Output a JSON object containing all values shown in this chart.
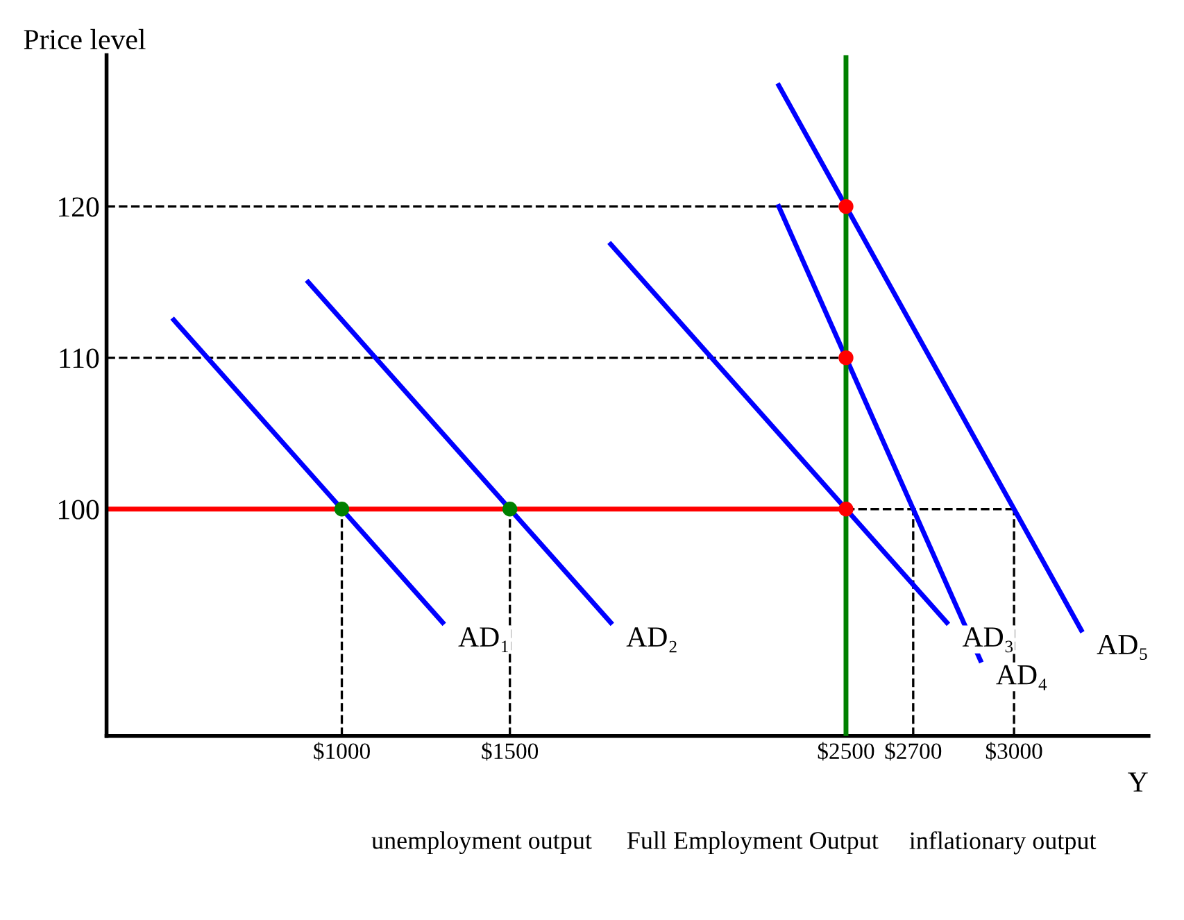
{
  "chart_data": {
    "type": "line",
    "xlabel": "Y",
    "ylabel": "Price level",
    "xlim": [
      300,
      3400
    ],
    "ylim": [
      85,
      130
    ],
    "xticks": [
      {
        "value": 1000,
        "label": "$1000"
      },
      {
        "value": 1500,
        "label": "$1500"
      },
      {
        "value": 2500,
        "label": "$2500"
      },
      {
        "value": 2700,
        "label": "$2700"
      },
      {
        "value": 3000,
        "label": "$3000"
      }
    ],
    "yticks": [
      100,
      110,
      120
    ],
    "grid": false,
    "series": [
      {
        "type": "line",
        "color": "#000000",
        "line_style": "dashed",
        "x": [
          300,
          2500
        ],
        "values": [
          120,
          120
        ]
      },
      {
        "type": "line",
        "color": "#000000",
        "line_style": "dashed",
        "x": [
          300,
          2500
        ],
        "values": [
          110,
          110
        ]
      },
      {
        "type": "line",
        "color": "#000000",
        "line_style": "dashed",
        "x": [
          2500,
          3000
        ],
        "values": [
          100,
          100
        ]
      },
      {
        "type": "line",
        "color": "#000000",
        "line_style": "dashed",
        "x": [
          1000,
          1000
        ],
        "values": [
          85,
          100
        ]
      },
      {
        "type": "line",
        "color": "#000000",
        "line_style": "dashed",
        "x": [
          1500,
          1500
        ],
        "values": [
          85,
          100
        ]
      },
      {
        "type": "line",
        "color": "#000000",
        "line_style": "dashed",
        "x": [
          2700,
          2700
        ],
        "values": [
          85,
          100
        ]
      },
      {
        "type": "line",
        "color": "#000000",
        "line_style": "dashed",
        "x": [
          3000,
          3000
        ],
        "values": [
          85,
          100
        ]
      },
      {
        "type": "line",
        "color": "#ff0000",
        "line_style": "solid",
        "x": [
          300,
          2500
        ],
        "values": [
          100,
          100
        ]
      },
      {
        "name": "AD₁",
        "color": "#0000ff",
        "line_style": "solid",
        "x": [
          500,
          1300
        ],
        "values": [
          112.5,
          92.5
        ]
      },
      {
        "name": "AD₂",
        "color": "#0000ff",
        "line_style": "solid",
        "x": [
          900,
          1800
        ],
        "values": [
          115,
          92.5
        ]
      },
      {
        "name": "AD₃",
        "color": "#0000ff",
        "line_style": "solid",
        "x": [
          1800,
          2800
        ],
        "values": [
          117.5,
          92.5
        ]
      },
      {
        "name": "AD₄",
        "color": "#0000ff",
        "line_style": "solid",
        "x": [
          2300,
          2900
        ],
        "values": [
          120,
          90
        ]
      },
      {
        "name": "AD₅",
        "color": "#0000ff",
        "line_style": "solid",
        "x": [
          2300,
          3200
        ],
        "values": [
          128,
          92
        ]
      },
      {
        "type": "scatter",
        "color": "#008000",
        "marker": "circle",
        "x": [
          1000,
          1500
        ],
        "values": [
          100,
          100
        ]
      },
      {
        "type": "scatter",
        "color": "#ff0000",
        "marker": "circle",
        "x": [
          2500,
          2500,
          2500
        ],
        "values": [
          100,
          110,
          120
        ]
      }
    ],
    "ref_lines": [
      {
        "axis": "x",
        "value": 2500,
        "color": "#008000",
        "line_style": "solid"
      }
    ],
    "annotations": [
      "unemployment output",
      "Full Employment Output",
      "inflationary output"
    ]
  }
}
